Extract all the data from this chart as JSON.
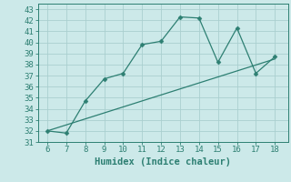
{
  "x_data": [
    6,
    7,
    8,
    9,
    10,
    11,
    12,
    13,
    14,
    15,
    16,
    17,
    18
  ],
  "y_data": [
    32,
    31.8,
    34.7,
    36.7,
    37.2,
    39.8,
    40.1,
    42.3,
    42.2,
    38.2,
    41.3,
    37.2,
    38.7
  ],
  "trend_x": [
    6,
    18
  ],
  "trend_y": [
    32.0,
    38.5
  ],
  "line_color": "#2d7f72",
  "bg_color": "#cce9e9",
  "grid_color": "#aacfcf",
  "xlabel": "Humidex (Indice chaleur)",
  "xlim": [
    5.5,
    18.7
  ],
  "ylim": [
    31,
    43.5
  ],
  "xticks": [
    6,
    7,
    8,
    9,
    10,
    11,
    12,
    13,
    14,
    15,
    16,
    17,
    18
  ],
  "yticks": [
    31,
    32,
    33,
    34,
    35,
    36,
    37,
    38,
    39,
    40,
    41,
    42,
    43
  ],
  "tick_fontsize": 6.5,
  "label_fontsize": 7.5,
  "marker_size": 2.5,
  "linewidth": 0.9
}
